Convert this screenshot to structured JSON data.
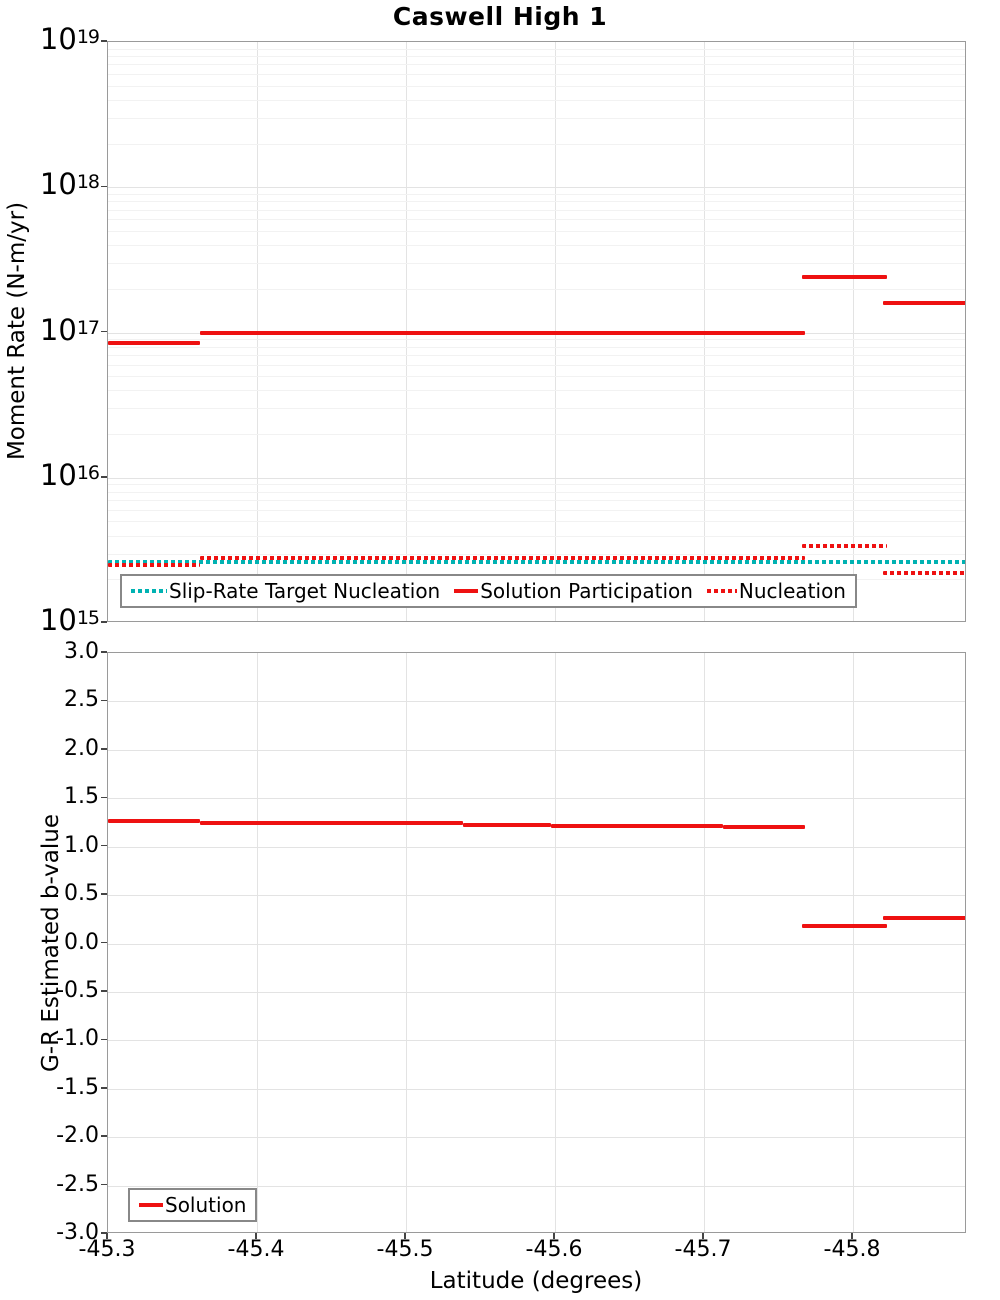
{
  "title": "Caswell High 1",
  "colors": {
    "red": "#ee1111",
    "cyan": "#00b2b2",
    "grid_major": "#e3e3e3",
    "grid_minor": "#f2f2f2",
    "legend_border": "#888888"
  },
  "chart_data": [
    {
      "id": "moment-rate-plot",
      "type": "line",
      "title": "Caswell High 1",
      "ylabel": "Moment Rate (N-m/yr)",
      "yscale": "log",
      "ylim": [
        1000000000000000.0,
        1e+19
      ],
      "yticks": [
        {
          "exp": "19"
        },
        {
          "exp": "18"
        },
        {
          "exp": "17"
        },
        {
          "exp": "16"
        },
        {
          "exp": "15"
        }
      ],
      "xlim": [
        -45.3,
        -45.8765
      ],
      "xticks": [
        {
          "v": -45.3,
          "label": "-45.3"
        },
        {
          "v": -45.4,
          "label": "-45.4"
        },
        {
          "v": -45.5,
          "label": "-45.5"
        },
        {
          "v": -45.6,
          "label": "-45.6"
        },
        {
          "v": -45.7,
          "label": "-45.7"
        },
        {
          "v": -45.8,
          "label": "-45.8"
        }
      ],
      "show_x_tick_labels": false,
      "grid": true,
      "legend_position": "bottom-left",
      "series": [
        {
          "name": "Slip-Rate Target Nucleation",
          "color": "cyan",
          "style": "dotted",
          "segments": [
            {
              "x": [
                -45.3,
                -45.8765
              ],
              "y": 2650000000000000.0
            }
          ]
        },
        {
          "name": "Solution Participation",
          "color": "red",
          "style": "solid",
          "segments": [
            {
              "x": [
                -45.3,
                -45.362
              ],
              "y": 8.4e+16
            },
            {
              "x": [
                -45.362,
                -45.768
              ],
              "y": 1e+17
            },
            {
              "x": [
                -45.766,
                -45.823
              ],
              "y": 2.4e+17
            },
            {
              "x": [
                -45.82,
                -45.8765
              ],
              "y": 1.6e+17
            }
          ]
        },
        {
          "name": "Nucleation",
          "color": "red",
          "style": "dotted",
          "segments": [
            {
              "x": [
                -45.3,
                -45.362
              ],
              "y": 2500000000000000.0
            },
            {
              "x": [
                -45.362,
                -45.768
              ],
              "y": 2800000000000000.0
            },
            {
              "x": [
                -45.766,
                -45.823
              ],
              "y": 3400000000000000.0
            },
            {
              "x": [
                -45.82,
                -45.8765
              ],
              "y": 2200000000000000.0
            }
          ]
        }
      ]
    },
    {
      "id": "b-value-plot",
      "type": "line",
      "ylabel": "G-R Estimated b-value",
      "xlabel": "Latitude (degrees)",
      "yscale": "linear",
      "ylim": [
        -3.0,
        3.0
      ],
      "yticks": [
        {
          "v": 3.0,
          "label": "3.0"
        },
        {
          "v": 2.5,
          "label": "2.5"
        },
        {
          "v": 2.0,
          "label": "2.0"
        },
        {
          "v": 1.5,
          "label": "1.5"
        },
        {
          "v": 1.0,
          "label": "1.0"
        },
        {
          "v": 0.5,
          "label": "0.5"
        },
        {
          "v": 0.0,
          "label": "0.0"
        },
        {
          "v": -0.5,
          "label": "-0.5"
        },
        {
          "v": -1.0,
          "label": "-1.0"
        },
        {
          "v": -1.5,
          "label": "-1.5"
        },
        {
          "v": -2.0,
          "label": "-2.0"
        },
        {
          "v": -2.5,
          "label": "-2.5"
        },
        {
          "v": -3.0,
          "label": "-3.0"
        }
      ],
      "xlim": [
        -45.3,
        -45.8765
      ],
      "xticks": [
        {
          "v": -45.3,
          "label": "-45.3"
        },
        {
          "v": -45.4,
          "label": "-45.4"
        },
        {
          "v": -45.5,
          "label": "-45.5"
        },
        {
          "v": -45.6,
          "label": "-45.6"
        },
        {
          "v": -45.7,
          "label": "-45.7"
        },
        {
          "v": -45.8,
          "label": "-45.8"
        }
      ],
      "show_x_tick_labels": true,
      "grid": true,
      "legend_position": "bottom-left",
      "series": [
        {
          "name": "Solution",
          "color": "red",
          "style": "solid",
          "segments": [
            {
              "x": [
                -45.3,
                -45.362
              ],
              "y": 1.26
            },
            {
              "x": [
                -45.362,
                -45.538
              ],
              "y": 1.24
            },
            {
              "x": [
                -45.538,
                -45.597
              ],
              "y": 1.22
            },
            {
              "x": [
                -45.597,
                -45.713
              ],
              "y": 1.21
            },
            {
              "x": [
                -45.713,
                -45.768
              ],
              "y": 1.2
            },
            {
              "x": [
                -45.766,
                -45.823
              ],
              "y": 0.18
            },
            {
              "x": [
                -45.82,
                -45.8765
              ],
              "y": 0.26
            }
          ]
        }
      ]
    }
  ]
}
